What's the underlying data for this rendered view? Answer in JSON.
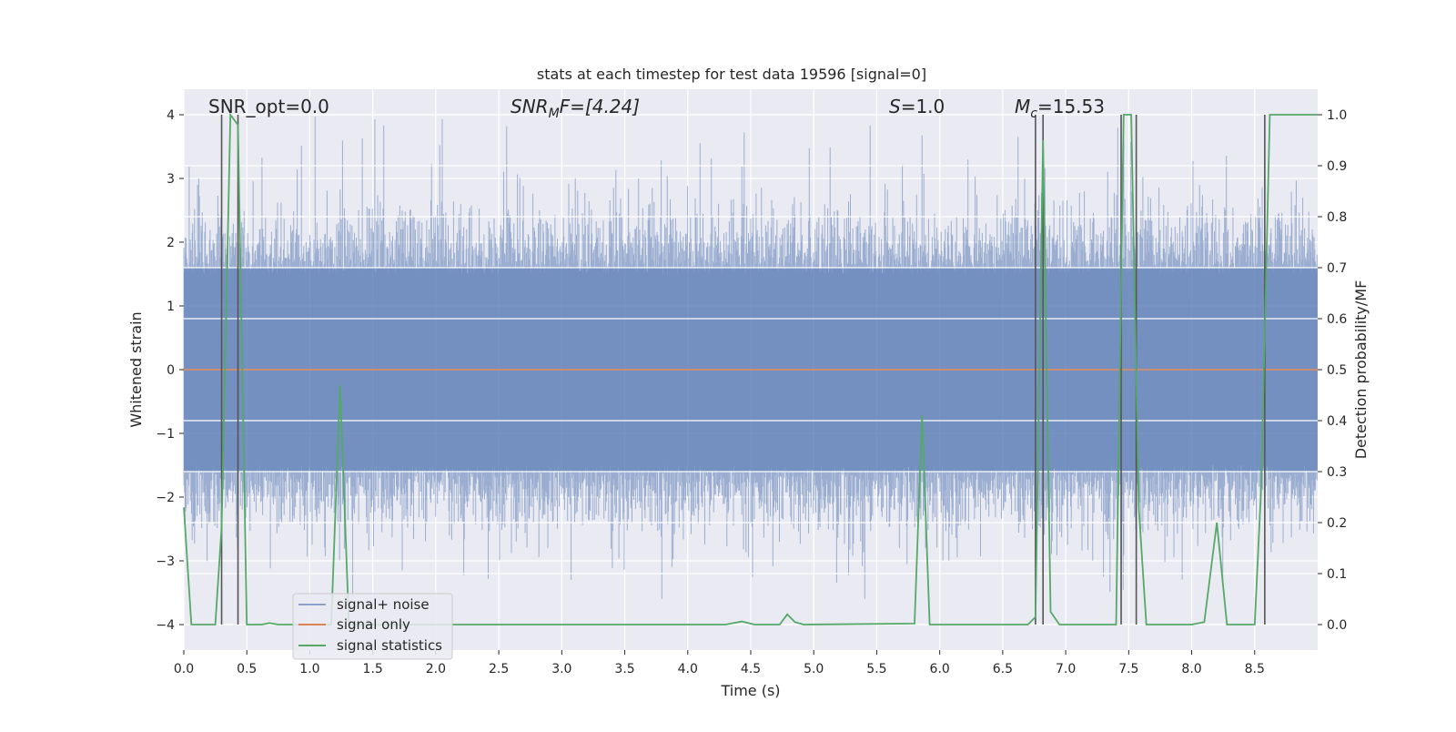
{
  "chart_data": {
    "type": "line",
    "title": "stats at each timestep for test data 19596 [signal=0]",
    "xlabel": "Time (s)",
    "ylabel_left": "Whitened strain",
    "ylabel_right": "Detection probability/MF",
    "xlim": [
      0.0,
      9.0
    ],
    "ylim_left": [
      -4.4,
      4.4
    ],
    "ylim_right": [
      -0.05,
      1.05
    ],
    "grid": true,
    "x_ticks": [
      "0.0",
      "0.5",
      "1.0",
      "1.5",
      "2.0",
      "2.5",
      "3.0",
      "3.5",
      "4.0",
      "4.5",
      "5.0",
      "5.5",
      "6.0",
      "6.5",
      "7.0",
      "7.5",
      "8.0",
      "8.5"
    ],
    "y_left_ticks": [
      "4",
      "3",
      "2",
      "1",
      "0",
      "−1",
      "−2",
      "−3",
      "−4"
    ],
    "y_right_ticks": [
      "1.0",
      "0.9",
      "0.8",
      "0.7",
      "0.6",
      "0.5",
      "0.4",
      "0.3",
      "0.2",
      "0.1",
      "0.0"
    ],
    "annotations": {
      "snr_opt": "SNR_opt=0.0",
      "snr_mf_prefix": "SNR",
      "snr_mf_sub": "M",
      "snr_mf_suffix": "F=[4.24]",
      "s_prefix": "S",
      "s_suffix": "=1.0",
      "mc_prefix": "M",
      "mc_sub": "c",
      "mc_suffix": "=15.53"
    },
    "legend": {
      "position": "lower-left",
      "entries": [
        "signal+ noise",
        "signal only",
        "signal statistics"
      ]
    },
    "series": [
      {
        "name": "signal+ noise",
        "color": "#4c72b0",
        "kind": "noise",
        "envelope_typical": [
          -1.6,
          1.6
        ],
        "extremes": [
          -3.6,
          4.0
        ]
      },
      {
        "name": "signal only",
        "color": "#dd8452",
        "kind": "line",
        "x": [
          0.0,
          9.0
        ],
        "y": [
          0.0,
          0.0
        ]
      },
      {
        "name": "signal statistics",
        "color": "#55a868",
        "kind": "line",
        "x": [
          0.0,
          0.06,
          0.25,
          0.3,
          0.37,
          0.43,
          0.5,
          0.52,
          0.62,
          0.68,
          0.75,
          1.17,
          1.24,
          1.31,
          1.38,
          1.42,
          4.3,
          4.43,
          4.53,
          4.73,
          4.79,
          4.85,
          4.92,
          5.8,
          5.86,
          5.92,
          5.99,
          6.7,
          6.76,
          6.82,
          6.88,
          6.95,
          7.4,
          7.46,
          7.52,
          7.58,
          7.64,
          7.7,
          7.8,
          7.9,
          8.0,
          8.1,
          8.2,
          8.28,
          8.35,
          8.5,
          8.55,
          8.62,
          9.0
        ],
        "y": [
          0.23,
          0.0,
          0.0,
          0.19,
          1.0,
          0.98,
          0.0,
          0.0,
          0.0,
          0.003,
          0.0,
          0.0,
          0.47,
          0.0,
          0.0,
          0.0,
          0.0,
          0.006,
          0.0,
          0.0,
          0.02,
          0.005,
          0.0,
          0.002,
          0.41,
          0.0,
          0.0,
          0.0,
          0.015,
          0.95,
          0.025,
          0.0,
          0.0,
          1.0,
          1.0,
          0.23,
          0.0,
          0.0,
          0.0,
          0.0,
          0.0,
          0.005,
          0.2,
          0.0,
          0.0,
          0.0,
          0.26,
          1.0,
          1.0
        ]
      }
    ],
    "vertical_markers": {
      "color": "#555555",
      "x": [
        0.3,
        0.43,
        6.76,
        6.82,
        7.44,
        7.56,
        8.58
      ]
    }
  }
}
